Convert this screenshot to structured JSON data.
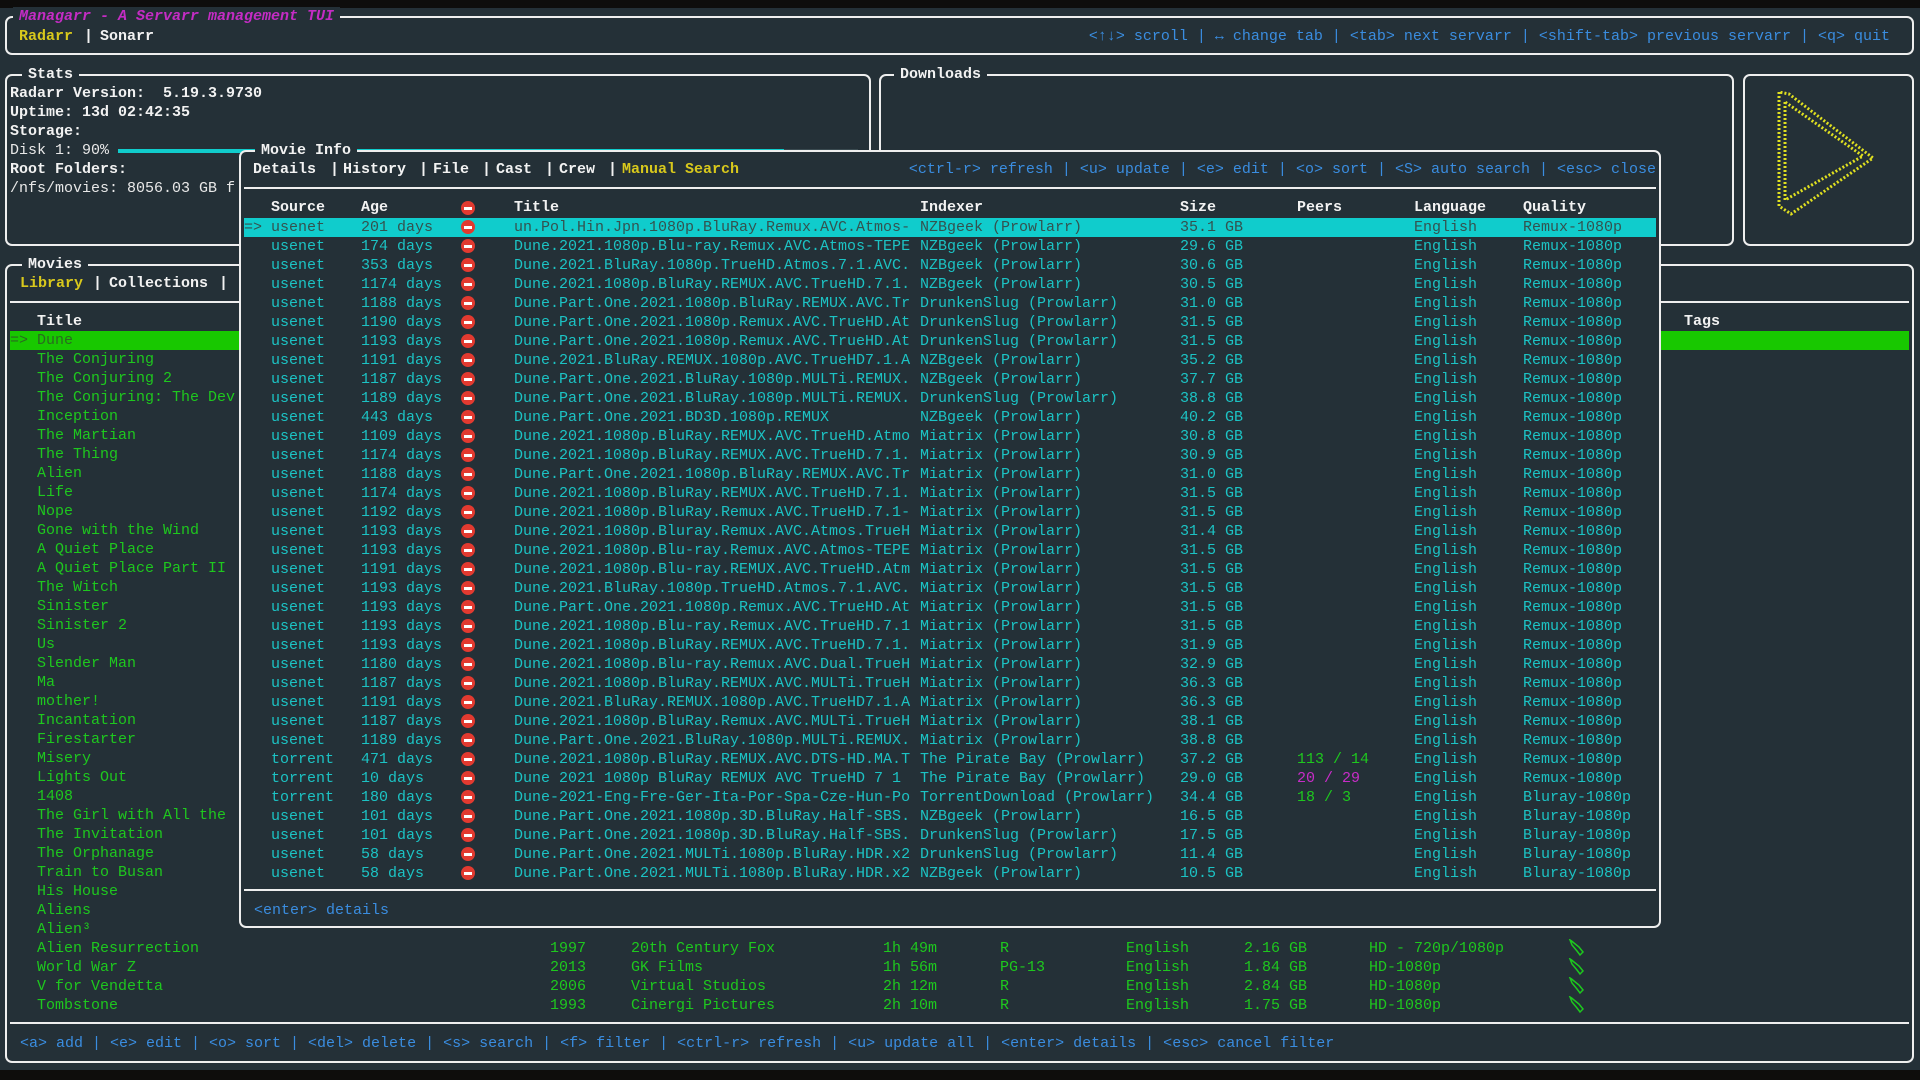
{
  "app": {
    "title": "Managarr - A Servarr management TUI",
    "servarr_tabs": [
      {
        "label": "Radarr",
        "active": true
      },
      {
        "label": "Sonarr",
        "active": false
      }
    ],
    "tab_separator": "|",
    "help": "<↑↓> scroll | ↔ change tab | <tab> next servarr | <shift-tab> previous servarr | <q> quit"
  },
  "stats": {
    "title": "Stats",
    "version_label": "Radarr Version:",
    "version": "5.19.3.9730",
    "uptime_label": "Uptime:",
    "uptime": "13d 02:42:35",
    "storage_label": "Storage:",
    "disk_label": "Disk 1: 90%",
    "disk_percent": 90,
    "root_folders_label": "Root Folders:",
    "root_folder": "/nfs/movies: 8056.03 GB f"
  },
  "downloads": {
    "title": "Downloads"
  },
  "logo": {
    "icon": "play-logo-icon",
    "color": "#e0e020"
  },
  "movies": {
    "title": "Movies",
    "tabs": [
      {
        "label": "Library",
        "active": true
      },
      {
        "label": "Collections",
        "active": false
      }
    ],
    "columns": {
      "title": "Title",
      "tags": "Tags"
    },
    "selected_marker": "=>",
    "rows": [
      {
        "title": "Dune",
        "selected": true
      },
      {
        "title": "The Conjuring"
      },
      {
        "title": "The Conjuring 2"
      },
      {
        "title": "The Conjuring: The Dev"
      },
      {
        "title": "Inception"
      },
      {
        "title": "The Martian"
      },
      {
        "title": "The Thing"
      },
      {
        "title": "Alien"
      },
      {
        "title": "Life"
      },
      {
        "title": "Nope"
      },
      {
        "title": "Gone with the Wind"
      },
      {
        "title": "A Quiet Place"
      },
      {
        "title": "A Quiet Place Part II"
      },
      {
        "title": "The Witch"
      },
      {
        "title": "Sinister"
      },
      {
        "title": "Sinister 2"
      },
      {
        "title": "Us"
      },
      {
        "title": "Slender Man"
      },
      {
        "title": "Ma"
      },
      {
        "title": "mother!"
      },
      {
        "title": "Incantation"
      },
      {
        "title": "Firestarter"
      },
      {
        "title": "Misery"
      },
      {
        "title": "Lights Out"
      },
      {
        "title": "1408"
      },
      {
        "title": "The Girl with All the"
      },
      {
        "title": "The Invitation"
      },
      {
        "title": "The Orphanage"
      },
      {
        "title": "Train to Busan"
      },
      {
        "title": "His House"
      },
      {
        "title": "Aliens"
      },
      {
        "title": "Alien³"
      },
      {
        "title": "Alien Resurrection",
        "year": "1997",
        "studio": "20th Century Fox",
        "runtime": "1h 49m",
        "rating": "R",
        "language": "English",
        "size": "2.16 GB",
        "quality": "HD - 720p/1080p",
        "tag_icon": "tag-icon"
      },
      {
        "title": "World War Z",
        "year": "2013",
        "studio": "GK Films",
        "runtime": "1h 56m",
        "rating": "PG-13",
        "language": "English",
        "size": "1.84 GB",
        "quality": "HD-1080p",
        "tag_icon": "tag-icon"
      },
      {
        "title": "V for Vendetta",
        "year": "2006",
        "studio": "Virtual Studios",
        "runtime": "2h 12m",
        "rating": "R",
        "language": "English",
        "size": "2.84 GB",
        "quality": "HD-1080p",
        "tag_icon": "tag-icon"
      },
      {
        "title": "Tombstone",
        "year": "1993",
        "studio": "Cinergi Pictures",
        "runtime": "2h 10m",
        "rating": "R",
        "language": "English",
        "size": "1.75 GB",
        "quality": "HD-1080p",
        "tag_icon": "tag-icon"
      }
    ],
    "help": "<a> add | <e> edit | <o> sort | <del> delete | <s> search | <f> filter | <ctrl-r> refresh | <u> update all | <enter> details | <esc> cancel filter"
  },
  "movie_info": {
    "title": "Movie Info",
    "tabs": [
      {
        "label": "Details",
        "active": false
      },
      {
        "label": "History",
        "active": false
      },
      {
        "label": "File",
        "active": false
      },
      {
        "label": "Cast",
        "active": false
      },
      {
        "label": "Crew",
        "active": false
      },
      {
        "label": "Manual Search",
        "active": true
      }
    ],
    "help": "<ctrl-r> refresh | <u> update | <e> edit | <o> sort | <S> auto search | <esc> close",
    "columns": {
      "source": "Source",
      "age": "Age",
      "rejected_icon": "blocked-icon",
      "title": "Title",
      "indexer": "Indexer",
      "size": "Size",
      "peers": "Peers",
      "language": "Language",
      "quality": "Quality"
    },
    "selected_marker": "=>",
    "colors": {
      "text": "#1cc3c4",
      "selected_bg": "#10cccc",
      "rejected": "#e23a30",
      "peers_good": "#1ec81e",
      "peers_bad": "#c82cc8"
    },
    "releases": [
      {
        "source": "usenet",
        "age": "201 days",
        "title": "un.Pol.Hin.Jpn.1080p.BluRay.Remux.AVC.Atmos-",
        "indexer": "NZBgeek (Prowlarr)",
        "size": "35.1 GB",
        "peers": "",
        "language": "English",
        "quality": "Remux-1080p",
        "selected": true
      },
      {
        "source": "usenet",
        "age": "174 days",
        "title": "Dune.2021.1080p.Blu-ray.Remux.AVC.Atmos-TEPE",
        "indexer": "NZBgeek (Prowlarr)",
        "size": "29.6 GB",
        "peers": "",
        "language": "English",
        "quality": "Remux-1080p"
      },
      {
        "source": "usenet",
        "age": "353 days",
        "title": "Dune.2021.BluRay.1080p.TrueHD.Atmos.7.1.AVC.",
        "indexer": "NZBgeek (Prowlarr)",
        "size": "30.6 GB",
        "peers": "",
        "language": "English",
        "quality": "Remux-1080p"
      },
      {
        "source": "usenet",
        "age": "1174 days",
        "title": "Dune.2021.1080p.BluRay.REMUX.AVC.TrueHD.7.1.",
        "indexer": "NZBgeek (Prowlarr)",
        "size": "30.5 GB",
        "peers": "",
        "language": "English",
        "quality": "Remux-1080p"
      },
      {
        "source": "usenet",
        "age": "1188 days",
        "title": "Dune.Part.One.2021.1080p.BluRay.REMUX.AVC.Tr",
        "indexer": "DrunkenSlug (Prowlarr)",
        "size": "31.0 GB",
        "peers": "",
        "language": "English",
        "quality": "Remux-1080p"
      },
      {
        "source": "usenet",
        "age": "1190 days",
        "title": "Dune.Part.One.2021.1080p.Remux.AVC.TrueHD.At",
        "indexer": "DrunkenSlug (Prowlarr)",
        "size": "31.5 GB",
        "peers": "",
        "language": "English",
        "quality": "Remux-1080p"
      },
      {
        "source": "usenet",
        "age": "1193 days",
        "title": "Dune.Part.One.2021.1080p.Remux.AVC.TrueHD.At",
        "indexer": "DrunkenSlug (Prowlarr)",
        "size": "31.5 GB",
        "peers": "",
        "language": "English",
        "quality": "Remux-1080p"
      },
      {
        "source": "usenet",
        "age": "1191 days",
        "title": "Dune.2021.BluRay.REMUX.1080p.AVC.TrueHD7.1.A",
        "indexer": "NZBgeek (Prowlarr)",
        "size": "35.2 GB",
        "peers": "",
        "language": "English",
        "quality": "Remux-1080p"
      },
      {
        "source": "usenet",
        "age": "1187 days",
        "title": "Dune.Part.One.2021.BluRay.1080p.MULTi.REMUX.",
        "indexer": "NZBgeek (Prowlarr)",
        "size": "37.7 GB",
        "peers": "",
        "language": "English",
        "quality": "Remux-1080p"
      },
      {
        "source": "usenet",
        "age": "1189 days",
        "title": "Dune.Part.One.2021.BluRay.1080p.MULTi.REMUX.",
        "indexer": "DrunkenSlug (Prowlarr)",
        "size": "38.8 GB",
        "peers": "",
        "language": "English",
        "quality": "Remux-1080p"
      },
      {
        "source": "usenet",
        "age": "443 days",
        "title": "Dune.Part.One.2021.BD3D.1080p.REMUX",
        "indexer": "NZBgeek (Prowlarr)",
        "size": "40.2 GB",
        "peers": "",
        "language": "English",
        "quality": "Remux-1080p"
      },
      {
        "source": "usenet",
        "age": "1109 days",
        "title": "Dune.2021.1080p.BluRay.REMUX.AVC.TrueHD.Atmo",
        "indexer": "Miatrix (Prowlarr)",
        "size": "30.8 GB",
        "peers": "",
        "language": "English",
        "quality": "Remux-1080p"
      },
      {
        "source": "usenet",
        "age": "1174 days",
        "title": "Dune.2021.1080p.BluRay.REMUX.AVC.TrueHD.7.1.",
        "indexer": "Miatrix (Prowlarr)",
        "size": "30.9 GB",
        "peers": "",
        "language": "English",
        "quality": "Remux-1080p"
      },
      {
        "source": "usenet",
        "age": "1188 days",
        "title": "Dune.Part.One.2021.1080p.BluRay.REMUX.AVC.Tr",
        "indexer": "Miatrix (Prowlarr)",
        "size": "31.0 GB",
        "peers": "",
        "language": "English",
        "quality": "Remux-1080p"
      },
      {
        "source": "usenet",
        "age": "1174 days",
        "title": "Dune.2021.1080p.BluRay.REMUX.AVC.TrueHD.7.1.",
        "indexer": "Miatrix (Prowlarr)",
        "size": "31.5 GB",
        "peers": "",
        "language": "English",
        "quality": "Remux-1080p"
      },
      {
        "source": "usenet",
        "age": "1192 days",
        "title": "Dune.2021.1080p.BluRay.Remux.AVC.TrueHD.7.1-",
        "indexer": "Miatrix (Prowlarr)",
        "size": "31.5 GB",
        "peers": "",
        "language": "English",
        "quality": "Remux-1080p"
      },
      {
        "source": "usenet",
        "age": "1193 days",
        "title": "Dune.2021.1080p.Bluray.Remux.AVC.Atmos.TrueH",
        "indexer": "Miatrix (Prowlarr)",
        "size": "31.4 GB",
        "peers": "",
        "language": "English",
        "quality": "Remux-1080p"
      },
      {
        "source": "usenet",
        "age": "1193 days",
        "title": "Dune.2021.1080p.Blu-ray.Remux.AVC.Atmos-TEPE",
        "indexer": "Miatrix (Prowlarr)",
        "size": "31.5 GB",
        "peers": "",
        "language": "English",
        "quality": "Remux-1080p"
      },
      {
        "source": "usenet",
        "age": "1191 days",
        "title": "Dune.2021.1080p.Blu-ray.REMUX.AVC.TrueHD.Atm",
        "indexer": "Miatrix (Prowlarr)",
        "size": "31.5 GB",
        "peers": "",
        "language": "English",
        "quality": "Remux-1080p"
      },
      {
        "source": "usenet",
        "age": "1193 days",
        "title": "Dune.2021.BluRay.1080p.TrueHD.Atmos.7.1.AVC.",
        "indexer": "Miatrix (Prowlarr)",
        "size": "31.5 GB",
        "peers": "",
        "language": "English",
        "quality": "Remux-1080p"
      },
      {
        "source": "usenet",
        "age": "1193 days",
        "title": "Dune.Part.One.2021.1080p.Remux.AVC.TrueHD.At",
        "indexer": "Miatrix (Prowlarr)",
        "size": "31.5 GB",
        "peers": "",
        "language": "English",
        "quality": "Remux-1080p"
      },
      {
        "source": "usenet",
        "age": "1193 days",
        "title": "Dune.2021.1080p.Blu-ray.Remux.AVC.TrueHD.7.1",
        "indexer": "Miatrix (Prowlarr)",
        "size": "31.5 GB",
        "peers": "",
        "language": "English",
        "quality": "Remux-1080p"
      },
      {
        "source": "usenet",
        "age": "1193 days",
        "title": "Dune.2021.1080p.BluRay.REMUX.AVC.TrueHD.7.1.",
        "indexer": "Miatrix (Prowlarr)",
        "size": "31.9 GB",
        "peers": "",
        "language": "English",
        "quality": "Remux-1080p"
      },
      {
        "source": "usenet",
        "age": "1180 days",
        "title": "Dune.2021.1080p.Blu-ray.Remux.AVC.Dual.TrueH",
        "indexer": "Miatrix (Prowlarr)",
        "size": "32.9 GB",
        "peers": "",
        "language": "English",
        "quality": "Remux-1080p"
      },
      {
        "source": "usenet",
        "age": "1187 days",
        "title": "Dune.2021.1080p.BluRay.REMUX.AVC.MULTi.TrueH",
        "indexer": "Miatrix (Prowlarr)",
        "size": "36.3 GB",
        "peers": "",
        "language": "English",
        "quality": "Remux-1080p"
      },
      {
        "source": "usenet",
        "age": "1191 days",
        "title": "Dune.2021.BluRay.REMUX.1080p.AVC.TrueHD7.1.A",
        "indexer": "Miatrix (Prowlarr)",
        "size": "36.3 GB",
        "peers": "",
        "language": "English",
        "quality": "Remux-1080p"
      },
      {
        "source": "usenet",
        "age": "1187 days",
        "title": "Dune.2021.1080p.BluRay.Remux.AVC.MULTi.TrueH",
        "indexer": "Miatrix (Prowlarr)",
        "size": "38.1 GB",
        "peers": "",
        "language": "English",
        "quality": "Remux-1080p"
      },
      {
        "source": "usenet",
        "age": "1189 days",
        "title": "Dune.Part.One.2021.BluRay.1080p.MULTi.REMUX.",
        "indexer": "Miatrix (Prowlarr)",
        "size": "38.8 GB",
        "peers": "",
        "language": "English",
        "quality": "Remux-1080p"
      },
      {
        "source": "torrent",
        "age": "471 days",
        "title": "Dune.2021.1080p.BluRay.REMUX.AVC.DTS-HD.MA.T",
        "indexer": "The Pirate Bay (Prowlarr)",
        "size": "37.2 GB",
        "peers": "113 / 14",
        "peers_color": "#1ec81e",
        "language": "English",
        "quality": "Remux-1080p"
      },
      {
        "source": "torrent",
        "age": "10 days",
        "title": "Dune 2021 1080p BluRay REMUX AVC TrueHD 7 1",
        "indexer": "The Pirate Bay (Prowlarr)",
        "size": "29.0 GB",
        "peers": "20 / 29",
        "peers_color": "#c82cc8",
        "language": "English",
        "quality": "Remux-1080p"
      },
      {
        "source": "torrent",
        "age": "180 days",
        "title": "Dune-2021-Eng-Fre-Ger-Ita-Por-Spa-Cze-Hun-Po",
        "indexer": "TorrentDownload (Prowlarr)",
        "size": "34.4 GB",
        "peers": "18 / 3",
        "peers_color": "#1ec81e",
        "language": "English",
        "quality": "Bluray-1080p"
      },
      {
        "source": "usenet",
        "age": "101 days",
        "title": "Dune.Part.One.2021.1080p.3D.BluRay.Half-SBS.",
        "indexer": "NZBgeek (Prowlarr)",
        "size": "16.5 GB",
        "peers": "",
        "language": "English",
        "quality": "Bluray-1080p"
      },
      {
        "source": "usenet",
        "age": "101 days",
        "title": "Dune.Part.One.2021.1080p.3D.BluRay.Half-SBS.",
        "indexer": "DrunkenSlug (Prowlarr)",
        "size": "17.5 GB",
        "peers": "",
        "language": "English",
        "quality": "Bluray-1080p"
      },
      {
        "source": "usenet",
        "age": "58 days",
        "title": "Dune.Part.One.2021.MULTi.1080p.BluRay.HDR.x2",
        "indexer": "DrunkenSlug (Prowlarr)",
        "size": "11.4 GB",
        "peers": "",
        "language": "English",
        "quality": "Bluray-1080p"
      },
      {
        "source": "usenet",
        "age": "58 days",
        "title": "Dune.Part.One.2021.MULTi.1080p.BluRay.HDR.x2",
        "indexer": "NZBgeek (Prowlarr)",
        "size": "10.5 GB",
        "peers": "",
        "language": "English",
        "quality": "Bluray-1080p"
      }
    ],
    "footer_help": "<enter> details"
  }
}
